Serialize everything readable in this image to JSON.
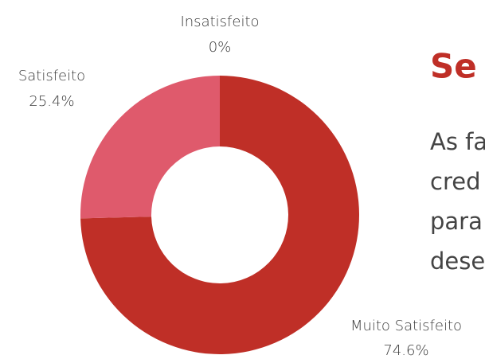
{
  "chart_data": {
    "type": "donut",
    "categories": [
      "Muito Satisfeito",
      "Satisfeito",
      "Insatisfeito"
    ],
    "values": [
      74.6,
      25.4,
      0
    ],
    "value_labels": [
      "74.6%",
      "25.4%",
      "0%"
    ],
    "colors": [
      "#bf2f27",
      "#df5a6c",
      "#9e9e9e"
    ]
  },
  "heading": "Se",
  "paragraph_lines": [
    "As fa",
    "cred",
    "para",
    "dese"
  ]
}
